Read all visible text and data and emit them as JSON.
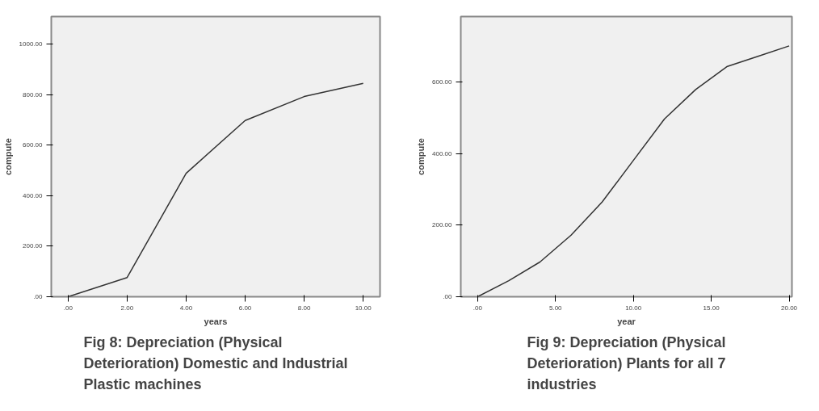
{
  "chart_data": [
    {
      "type": "line",
      "xlabel": "years",
      "ylabel": "compute",
      "annotations": [
        "Fig 8: Depreciation (Physical Deterioration) Domestic and Industrial Plastic machines"
      ],
      "x": [
        0,
        2,
        4,
        6,
        8,
        10
      ],
      "series": [
        {
          "color": "#333333",
          "values": [
            0,
            76,
            489,
            698,
            793,
            845
          ]
        }
      ],
      "xlim": [
        -0.57,
        10.57
      ],
      "ylim": [
        0,
        1110
      ],
      "xticks": [
        {
          "value": 0,
          "label": ".00"
        },
        {
          "value": 2,
          "label": "2.00"
        },
        {
          "value": 4,
          "label": "4.00"
        },
        {
          "value": 6,
          "label": "6.00"
        },
        {
          "value": 8,
          "label": "8.00"
        },
        {
          "value": 10,
          "label": "10.00"
        }
      ],
      "yticks": [
        {
          "value": 0,
          "label": ".00"
        },
        {
          "value": 200,
          "label": "200.00"
        },
        {
          "value": 400,
          "label": "400.00"
        },
        {
          "value": 600,
          "label": "600.00"
        },
        {
          "value": 800,
          "label": "800.00"
        },
        {
          "value": 1000,
          "label": "1000.00"
        }
      ],
      "grid": false,
      "marker": "none",
      "line_style": "solid"
    },
    {
      "type": "line",
      "xlabel": "year",
      "ylabel": "compute",
      "annotations": [
        "Fig 9: Depreciation (Physical Deterioration) Plants for all 7 industries"
      ],
      "x": [
        0,
        2,
        4,
        6,
        8,
        10,
        12,
        14,
        16,
        18,
        20
      ],
      "series": [
        {
          "color": "#333333",
          "values": [
            0,
            45,
            97,
            172,
            265,
            381,
            497,
            579,
            643,
            672,
            701
          ]
        }
      ],
      "xlim": [
        -1.08,
        20.18
      ],
      "ylim": [
        0,
        783
      ],
      "xticks": [
        {
          "value": 0,
          "label": ".00"
        },
        {
          "value": 5,
          "label": "5.00"
        },
        {
          "value": 10,
          "label": "10.00"
        },
        {
          "value": 15,
          "label": "15.00"
        },
        {
          "value": 20,
          "label": "20.00"
        }
      ],
      "yticks": [
        {
          "value": 0,
          "label": ".00"
        },
        {
          "value": 200,
          "label": "200.00"
        },
        {
          "value": 400,
          "label": "400.00"
        },
        {
          "value": 600,
          "label": "600.00"
        }
      ],
      "grid": false,
      "marker": "none",
      "line_style": "solid"
    }
  ]
}
